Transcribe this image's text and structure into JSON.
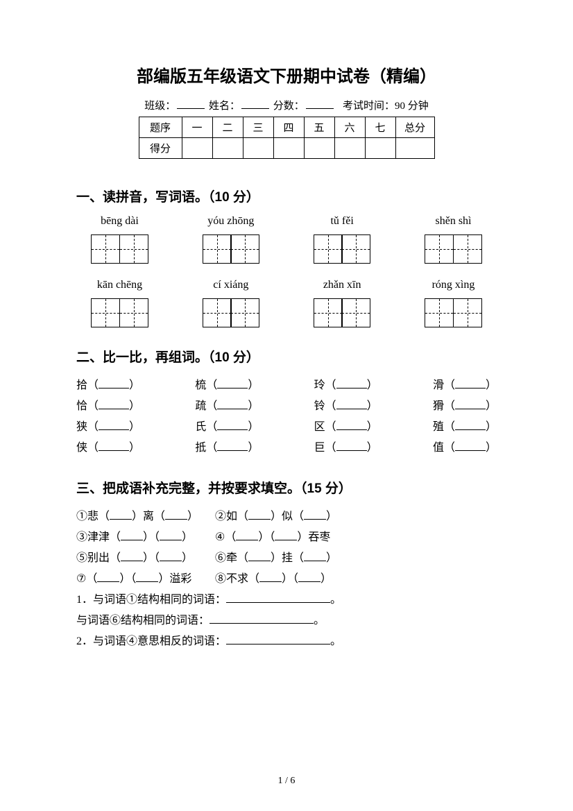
{
  "title": "部编版五年级语文下册期中试卷（精编）",
  "meta": {
    "class_label": "班级：",
    "name_label": "姓名：",
    "score_label": "分数：",
    "time_label": "考试时间：90 分钟"
  },
  "score_table": {
    "row1": [
      "题序",
      "一",
      "二",
      "三",
      "四",
      "五",
      "六",
      "七",
      "总分"
    ],
    "row2_label": "得分"
  },
  "section1": {
    "heading": "一、读拼音，写词语。（10 分）",
    "row1": [
      "bēng dài",
      "yóu zhōng",
      "tǔ fěi",
      "shěn shì"
    ],
    "row2": [
      "kān chēng",
      "cí xiáng",
      "zhǎn xīn",
      "róng xìng"
    ]
  },
  "section2": {
    "heading": "二、比一比，再组词。（10 分）",
    "rows": [
      [
        "拾",
        "梳",
        "玲",
        "滑"
      ],
      [
        "恰",
        "疏",
        "铃",
        "猾"
      ],
      [
        "狭",
        "氏",
        "区",
        "殖"
      ],
      [
        "侠",
        "抵",
        "巨",
        "值"
      ]
    ]
  },
  "section3": {
    "heading": "三、把成语补充完整，并按要求填空。（15 分）",
    "idioms": [
      {
        "num": "①",
        "pattern": "悲（___）离（___）"
      },
      {
        "num": "②",
        "pattern": "如（___）似（___）"
      },
      {
        "num": "③",
        "pattern": "津津（___）（___）"
      },
      {
        "num": "④",
        "pattern": "（___）（___）吞枣"
      },
      {
        "num": "⑤",
        "pattern": "别出（___）（___）"
      },
      {
        "num": "⑥",
        "pattern": "牵（___）挂（___）"
      },
      {
        "num": "⑦",
        "pattern": "（___）（___）溢彩"
      },
      {
        "num": "⑧",
        "pattern": "不求（___）（___）"
      }
    ],
    "q1a": "1．与词语①结构相同的词语：",
    "q1b": "与词语⑥结构相同的词语：",
    "q2": "2．与词语④意思相反的词语：",
    "period": "。"
  },
  "footer": "1 / 6"
}
